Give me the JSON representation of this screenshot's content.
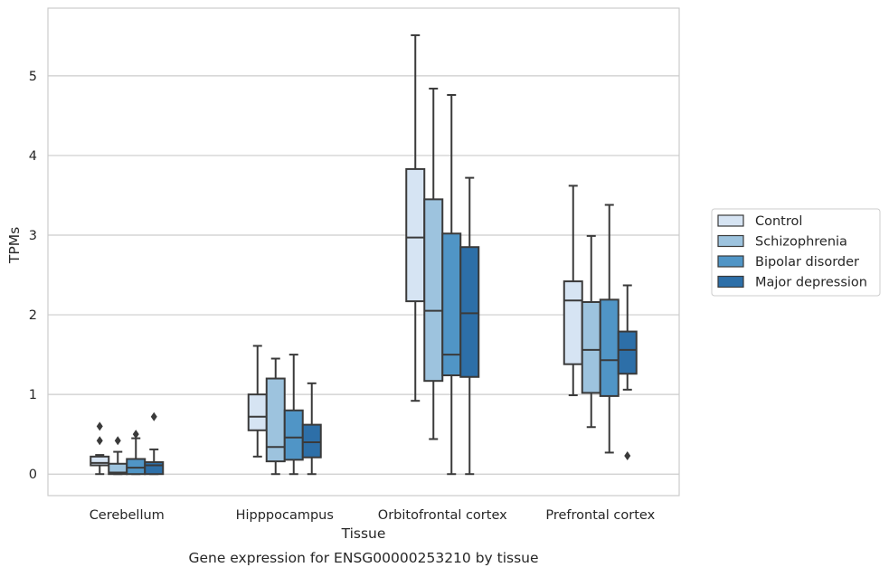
{
  "chart_data": {
    "type": "boxplot",
    "title": "",
    "caption": "Gene expression for ENSG00000253210 by tissue",
    "xlabel": "Tissue",
    "ylabel": "TPMs",
    "ylim": [
      -0.27,
      5.85
    ],
    "yticks": [
      "0",
      "1",
      "2",
      "3",
      "4",
      "5"
    ],
    "categories": [
      "Cerebellum",
      "Hipppocampus",
      "Orbitofrontal cortex",
      "Prefrontal cortex"
    ],
    "grid": true,
    "legend_position": "right",
    "series": [
      {
        "name": "Control",
        "color": "#d6e4f3",
        "boxes": [
          {
            "whisker_low": 0.0,
            "q1": 0.11,
            "median": 0.14,
            "q3": 0.22,
            "whisker_high": 0.24,
            "outliers": [
              0.42,
              0.6
            ]
          },
          {
            "whisker_low": 0.22,
            "q1": 0.55,
            "median": 0.72,
            "q3": 1.0,
            "whisker_high": 1.61,
            "outliers": []
          },
          {
            "whisker_low": 0.92,
            "q1": 2.17,
            "median": 2.97,
            "q3": 3.83,
            "whisker_high": 5.51,
            "outliers": []
          },
          {
            "whisker_low": 0.99,
            "q1": 1.38,
            "median": 2.18,
            "q3": 2.42,
            "whisker_high": 3.62,
            "outliers": []
          }
        ]
      },
      {
        "name": "Schizophrenia",
        "color": "#9dc3de",
        "boxes": [
          {
            "whisker_low": 0.0,
            "q1": 0.0,
            "median": 0.02,
            "q3": 0.13,
            "whisker_high": 0.28,
            "outliers": [
              0.42
            ]
          },
          {
            "whisker_low": 0.0,
            "q1": 0.16,
            "median": 0.34,
            "q3": 1.2,
            "whisker_high": 1.45,
            "outliers": []
          },
          {
            "whisker_low": 0.44,
            "q1": 1.17,
            "median": 2.05,
            "q3": 3.45,
            "whisker_high": 4.84,
            "outliers": []
          },
          {
            "whisker_low": 0.59,
            "q1": 1.02,
            "median": 1.56,
            "q3": 2.16,
            "whisker_high": 2.99,
            "outliers": []
          }
        ]
      },
      {
        "name": "Bipolar disorder",
        "color": "#5095c6",
        "boxes": [
          {
            "whisker_low": 0.0,
            "q1": 0.0,
            "median": 0.08,
            "q3": 0.19,
            "whisker_high": 0.45,
            "outliers": [
              0.5
            ]
          },
          {
            "whisker_low": 0.0,
            "q1": 0.18,
            "median": 0.46,
            "q3": 0.8,
            "whisker_high": 1.5,
            "outliers": []
          },
          {
            "whisker_low": 0.0,
            "q1": 1.24,
            "median": 1.5,
            "q3": 3.02,
            "whisker_high": 4.76,
            "outliers": []
          },
          {
            "whisker_low": 0.27,
            "q1": 0.98,
            "median": 1.43,
            "q3": 2.19,
            "whisker_high": 3.38,
            "outliers": []
          }
        ]
      },
      {
        "name": "Major depression",
        "color": "#2d6fa8",
        "boxes": [
          {
            "whisker_low": 0.0,
            "q1": 0.0,
            "median": 0.11,
            "q3": 0.15,
            "whisker_high": 0.31,
            "outliers": [
              0.72
            ]
          },
          {
            "whisker_low": 0.0,
            "q1": 0.21,
            "median": 0.4,
            "q3": 0.62,
            "whisker_high": 1.14,
            "outliers": []
          },
          {
            "whisker_low": 0.0,
            "q1": 1.22,
            "median": 2.02,
            "q3": 2.85,
            "whisker_high": 3.72,
            "outliers": []
          },
          {
            "whisker_low": 1.06,
            "q1": 1.26,
            "median": 1.56,
            "q3": 1.79,
            "whisker_high": 2.37,
            "outliers": [
              0.23
            ]
          }
        ]
      }
    ]
  }
}
